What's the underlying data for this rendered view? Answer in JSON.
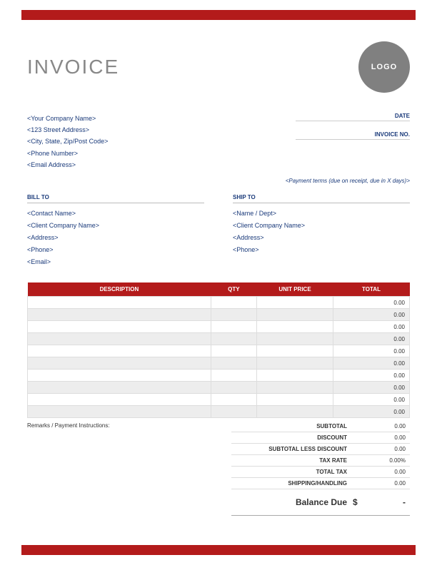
{
  "colors": {
    "accent": "#b31b1b",
    "navy": "#1a3a7a",
    "title_gray": "#888888",
    "logo_bg": "#808080",
    "row_alt": "#ededed",
    "border": "#dddddd",
    "background": "#ffffff"
  },
  "header": {
    "title": "INVOICE",
    "logo_text": "LOGO"
  },
  "company": {
    "name": "<Your Company Name>",
    "street": "<123 Street Address>",
    "city": "<City, State, Zip/Post Code>",
    "phone": "<Phone Number>",
    "email": "<Email Address>"
  },
  "meta": {
    "date_label": "DATE",
    "invoice_no_label": "INVOICE NO.",
    "payment_terms": "<Payment terms (due on receipt, due in X days)>"
  },
  "bill_to": {
    "title": "BILL TO",
    "contact": "<Contact Name>",
    "company": "<Client Company Name>",
    "address": "<Address>",
    "phone": "<Phone>",
    "email": "<Email>"
  },
  "ship_to": {
    "title": "SHIP TO",
    "name": "<Name / Dept>",
    "company": "<Client Company Name>",
    "address": "<Address>",
    "phone": "<Phone>"
  },
  "table": {
    "headers": {
      "description": "DESCRIPTION",
      "qty": "QTY",
      "unit_price": "UNIT PRICE",
      "total": "TOTAL"
    },
    "rows": [
      {
        "description": "",
        "qty": "",
        "unit_price": "",
        "total": "0.00"
      },
      {
        "description": "",
        "qty": "",
        "unit_price": "",
        "total": "0.00"
      },
      {
        "description": "",
        "qty": "",
        "unit_price": "",
        "total": "0.00"
      },
      {
        "description": "",
        "qty": "",
        "unit_price": "",
        "total": "0.00"
      },
      {
        "description": "",
        "qty": "",
        "unit_price": "",
        "total": "0.00"
      },
      {
        "description": "",
        "qty": "",
        "unit_price": "",
        "total": "0.00"
      },
      {
        "description": "",
        "qty": "",
        "unit_price": "",
        "total": "0.00"
      },
      {
        "description": "",
        "qty": "",
        "unit_price": "",
        "total": "0.00"
      },
      {
        "description": "",
        "qty": "",
        "unit_price": "",
        "total": "0.00"
      },
      {
        "description": "",
        "qty": "",
        "unit_price": "",
        "total": "0.00"
      }
    ]
  },
  "remarks_label": "Remarks / Payment Instructions:",
  "totals": {
    "subtotal": {
      "label": "SUBTOTAL",
      "value": "0.00"
    },
    "discount": {
      "label": "DISCOUNT",
      "value": "0.00"
    },
    "subtotal_less_discount": {
      "label": "SUBTOTAL LESS DISCOUNT",
      "value": "0.00"
    },
    "tax_rate": {
      "label": "TAX RATE",
      "value": "0.00%"
    },
    "total_tax": {
      "label": "TOTAL TAX",
      "value": "0.00"
    },
    "shipping": {
      "label": "SHIPPING/HANDLING",
      "value": "0.00"
    },
    "balance": {
      "label": "Balance Due",
      "currency": "$",
      "value": "-"
    }
  }
}
